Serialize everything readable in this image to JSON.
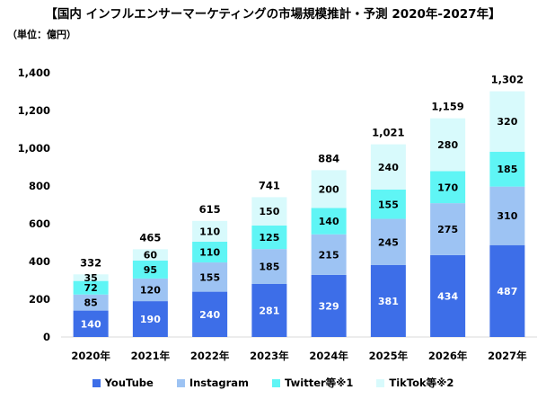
{
  "chart_data": {
    "type": "stacked-bar",
    "title": "【国内 インフルエンサーマーケティングの市場規模推計・予測 2020年-2027年】",
    "unit": "（単位：億円）",
    "categories": [
      "2020年",
      "2021年",
      "2022年",
      "2023年",
      "2024年",
      "2025年",
      "2026年",
      "2027年"
    ],
    "series": [
      {
        "name": "YouTube",
        "color": "#3d6ee8",
        "values": [
          140,
          190,
          240,
          281,
          329,
          381,
          434,
          487
        ]
      },
      {
        "name": "Instagram",
        "color": "#9dc3f3",
        "values": [
          85,
          120,
          155,
          185,
          215,
          245,
          275,
          310
        ]
      },
      {
        "name": "Twitter等※1",
        "color": "#5ff5f5",
        "values": [
          72,
          95,
          110,
          125,
          140,
          155,
          170,
          185
        ]
      },
      {
        "name": "TikTok等※2",
        "color": "#d8fafc",
        "values": [
          35,
          60,
          110,
          150,
          200,
          240,
          280,
          320
        ]
      }
    ],
    "totals": [
      332,
      465,
      615,
      741,
      884,
      1021,
      1159,
      1302
    ],
    "ylim": [
      0,
      1400
    ],
    "yticks": [
      "0",
      "200",
      "400",
      "600",
      "800",
      "1,000",
      "1,200",
      "1,400"
    ],
    "legend_position": "bottom"
  }
}
